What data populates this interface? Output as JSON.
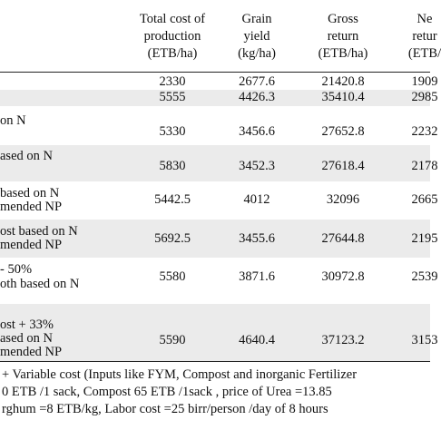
{
  "table": {
    "columns": [
      [
        "Total cost of",
        "production",
        "(ETB/ha)"
      ],
      [
        "Grain",
        "yield",
        "(kg/ha)"
      ],
      [
        "Gross",
        "return",
        "(ETB/ha)"
      ],
      [
        "Ne",
        "retur",
        "(ETB/"
      ]
    ],
    "rows": [
      {
        "label": [],
        "cells": [
          "2330",
          "2677.6",
          "21420.8",
          "1909"
        ]
      },
      {
        "label": [],
        "cells": [
          "5555",
          "4426.3",
          "35410.4",
          "2985"
        ]
      },
      {
        "label": [
          "on N"
        ],
        "cells": [
          "5330",
          "3456.6",
          "27652.8",
          "2232"
        ]
      },
      {
        "label": [
          "ased on N"
        ],
        "cells": [
          "5830",
          "3452.3",
          "27618.4",
          "2178"
        ]
      },
      {
        "label": [
          "based on N",
          "mended NP"
        ],
        "cells": [
          "5442.5",
          "4012",
          "32096",
          "2665"
        ]
      },
      {
        "label": [
          "ost based on N",
          "mended NP"
        ],
        "cells": [
          "5692.5",
          "3455.6",
          "27644.8",
          "2195"
        ]
      },
      {
        "label": [
          "- 50%",
          "oth based on N"
        ],
        "cells": [
          "5580",
          "3871.6",
          "30972.8",
          "2539"
        ]
      },
      {
        "label": [
          "ost + 33%",
          "ased on N",
          "mended NP"
        ],
        "cells": [
          "5590",
          "4640.4",
          "37123.2",
          "3153"
        ]
      }
    ]
  },
  "footnotes": [
    "+ Variable cost (Inputs like FYM, Compost and inorganic Fertilizer",
    "0 ETB /1 sack, Compost 65 ETB /1sack , price of Urea =13.85",
    "rghum =8 ETB/kg, Labor cost =25 birr/person /day of 8 hours"
  ]
}
